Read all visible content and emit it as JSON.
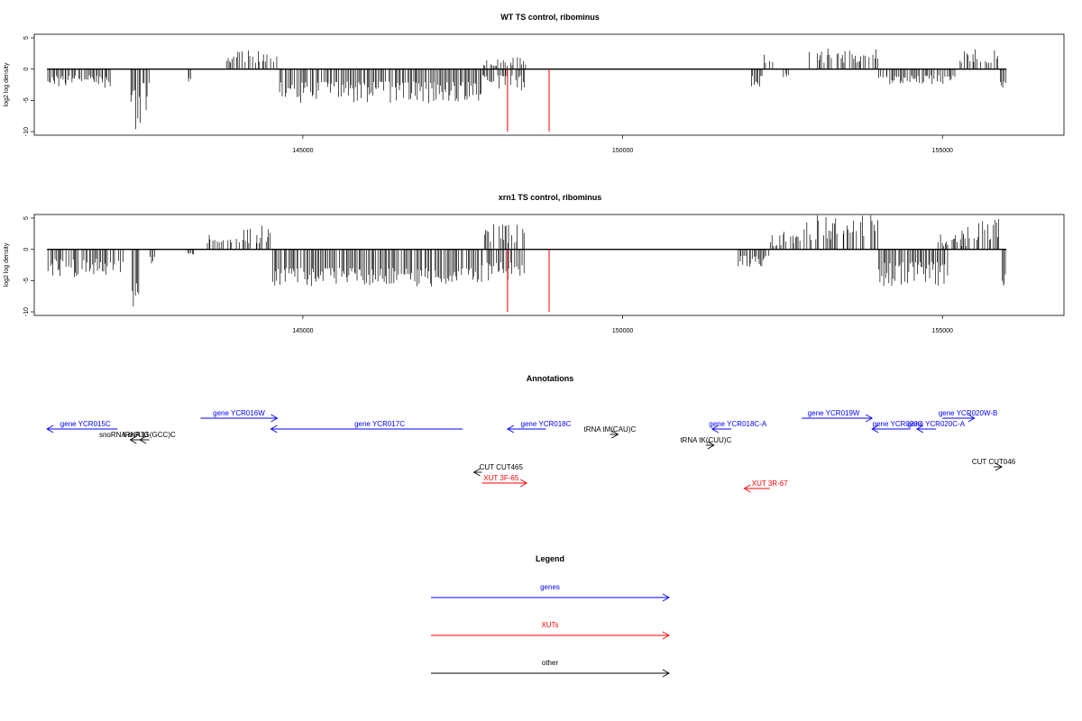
{
  "colors": {
    "genes": "#0000ff",
    "xuts": "#ff0000",
    "other": "#000000",
    "marker": "#ff0000"
  },
  "chart_data": [
    {
      "type": "bar",
      "title": "WT TS control, ribominus",
      "ylabel": "log2 log density",
      "xlim": [
        140800,
        156900
      ],
      "ylim": [
        -10,
        5
      ],
      "xticks": [
        145000,
        150000,
        155000
      ],
      "yticks": [
        5,
        0,
        -5,
        -10
      ],
      "marker_lines": [
        148200,
        148850
      ],
      "segments": [
        {
          "from": 141000,
          "to": 142000,
          "pos": [
            0,
            0
          ],
          "neg": [
            1,
            3
          ]
        },
        {
          "from": 142300,
          "to": 142600,
          "pos": [
            0,
            0
          ],
          "neg": [
            2,
            10
          ]
        },
        {
          "from": 143200,
          "to": 143250,
          "pos": [
            0,
            0
          ],
          "neg": [
            1,
            2
          ]
        },
        {
          "from": 143800,
          "to": 144600,
          "pos": [
            1,
            3
          ],
          "neg": [
            0,
            0
          ]
        },
        {
          "from": 144600,
          "to": 147800,
          "pos": [
            0,
            0
          ],
          "neg": [
            2,
            5.5
          ]
        },
        {
          "from": 147800,
          "to": 148500,
          "pos": [
            0.5,
            2
          ],
          "neg": [
            1,
            3.5
          ]
        },
        {
          "from": 152000,
          "to": 152200,
          "pos": [
            0,
            0
          ],
          "neg": [
            1,
            3
          ]
        },
        {
          "from": 152200,
          "to": 152400,
          "pos": [
            1,
            2.5
          ],
          "neg": [
            0,
            0
          ]
        },
        {
          "from": 152500,
          "to": 152600,
          "pos": [
            0,
            0
          ],
          "neg": [
            0.5,
            1.5
          ]
        },
        {
          "from": 152900,
          "to": 154000,
          "pos": [
            1,
            3.5
          ],
          "neg": [
            0,
            0
          ]
        },
        {
          "from": 154000,
          "to": 155200,
          "pos": [
            0,
            0
          ],
          "neg": [
            1,
            2.5
          ]
        },
        {
          "from": 155200,
          "to": 155900,
          "pos": [
            1,
            3.5
          ],
          "neg": [
            0,
            0
          ]
        },
        {
          "from": 155900,
          "to": 156000,
          "pos": [
            0,
            0
          ],
          "neg": [
            2,
            4
          ]
        }
      ]
    },
    {
      "type": "bar",
      "title": "xrn1 TS control, ribominus",
      "ylabel": "log2 log density",
      "xlim": [
        140800,
        156900
      ],
      "ylim": [
        -10,
        5
      ],
      "xticks": [
        145000,
        150000,
        155000
      ],
      "yticks": [
        5,
        0,
        -5,
        -10
      ],
      "marker_lines": [
        148200,
        148850
      ],
      "segments": [
        {
          "from": 141000,
          "to": 142200,
          "pos": [
            0,
            0
          ],
          "neg": [
            1.5,
            4.5
          ]
        },
        {
          "from": 142300,
          "to": 142450,
          "pos": [
            0,
            0
          ],
          "neg": [
            4,
            10
          ]
        },
        {
          "from": 142600,
          "to": 142700,
          "pos": [
            0,
            0
          ],
          "neg": [
            1,
            2.5
          ]
        },
        {
          "from": 143200,
          "to": 143300,
          "pos": [
            0,
            0
          ],
          "neg": [
            0.5,
            1
          ]
        },
        {
          "from": 143500,
          "to": 144300,
          "pos": [
            1,
            3.5
          ],
          "neg": [
            0,
            0
          ]
        },
        {
          "from": 144300,
          "to": 144500,
          "pos": [
            1,
            4
          ],
          "neg": [
            0,
            0
          ]
        },
        {
          "from": 144500,
          "to": 147800,
          "pos": [
            0,
            0
          ],
          "neg": [
            3,
            6
          ]
        },
        {
          "from": 147800,
          "to": 148500,
          "pos": [
            1,
            4
          ],
          "neg": [
            2,
            5
          ]
        },
        {
          "from": 151800,
          "to": 152300,
          "pos": [
            0,
            0
          ],
          "neg": [
            1,
            3
          ]
        },
        {
          "from": 152300,
          "to": 152800,
          "pos": [
            0.5,
            3
          ],
          "neg": [
            0,
            0
          ]
        },
        {
          "from": 152800,
          "to": 154000,
          "pos": [
            1.5,
            5.5
          ],
          "neg": [
            0,
            0
          ]
        },
        {
          "from": 154000,
          "to": 155100,
          "pos": [
            0,
            0
          ],
          "neg": [
            2,
            6
          ]
        },
        {
          "from": 154900,
          "to": 155400,
          "pos": [
            0.5,
            2.5
          ],
          "neg": [
            0,
            0
          ]
        },
        {
          "from": 155300,
          "to": 155900,
          "pos": [
            1.5,
            5
          ],
          "neg": [
            0,
            0
          ]
        },
        {
          "from": 155900,
          "to": 156000,
          "pos": [
            0,
            0
          ],
          "neg": [
            3,
            6
          ]
        }
      ]
    }
  ],
  "annotations": {
    "title": "Annotations",
    "items": [
      {
        "label": "gene YCR015C",
        "kind": "genes",
        "from": 142100,
        "to": 141000,
        "label_at": 141600,
        "row": 1
      },
      {
        "label": "gene YCR016W",
        "kind": "genes",
        "from": 143400,
        "to": 144600,
        "label_at": 144000,
        "row": 0
      },
      {
        "label": "gene YCR017C",
        "kind": "genes",
        "from": 147500,
        "to": 144500,
        "label_at": 146200,
        "row": 1
      },
      {
        "label": "gene YCR018C",
        "kind": "genes",
        "from": 148800,
        "to": 148200,
        "label_at": 148800,
        "row": 1
      },
      {
        "label": "gene YCR018C-A",
        "kind": "genes",
        "from": 151700,
        "to": 151400,
        "label_at": 151800,
        "row": 1
      },
      {
        "label": "gene YCR019W",
        "kind": "genes",
        "from": 152800,
        "to": 153900,
        "label_at": 153300,
        "row": 0
      },
      {
        "label": "gene YCR020C",
        "kind": "genes",
        "from": 154500,
        "to": 153900,
        "label_at": 154300,
        "row": 1
      },
      {
        "label": "gene YCR020C-A",
        "kind": "genes",
        "from": 154900,
        "to": 154600,
        "label_at": 154900,
        "row": 1
      },
      {
        "label": "gene YCR020W-B",
        "kind": "genes",
        "from": 155000,
        "to": 155500,
        "label_at": 155400,
        "row": 0
      },
      {
        "label": "tRNA tG(GCC)C",
        "kind": "other",
        "from": 142600,
        "to": 142450,
        "label_at": 142600,
        "row": 2
      },
      {
        "label": "snoRNA snR33",
        "kind": "other",
        "from": 142500,
        "to": 142300,
        "label_at": 142200,
        "row": 2
      },
      {
        "label": "tRNA tM(CAU)C",
        "kind": "other",
        "from": 149800,
        "to": 149800,
        "label_at": 149800,
        "row": 1.5
      },
      {
        "label": "tRNA tK(CUU)C",
        "kind": "other",
        "from": 151300,
        "to": 151300,
        "label_at": 151300,
        "row": 2.5
      },
      {
        "label": "CUT CUT465",
        "kind": "other",
        "from": 147800,
        "to": 147700,
        "label_at": 148100,
        "row": 5
      },
      {
        "label": "CUT CUT046",
        "kind": "other",
        "from": 155800,
        "to": 155900,
        "label_at": 155800,
        "row": 4.5
      },
      {
        "label": "XUT 3F-65",
        "kind": "xuts",
        "from": 147800,
        "to": 148500,
        "label_at": 148100,
        "row": 6
      },
      {
        "label": "XUT 3R-67",
        "kind": "xuts",
        "from": 152300,
        "to": 151900,
        "label_at": 152300,
        "row": 6.5
      }
    ]
  },
  "legend": {
    "title": "Legend",
    "entries": [
      {
        "label": "genes",
        "kind": "genes"
      },
      {
        "label": "XUTs",
        "kind": "xuts"
      },
      {
        "label": "other",
        "kind": "other"
      }
    ]
  }
}
